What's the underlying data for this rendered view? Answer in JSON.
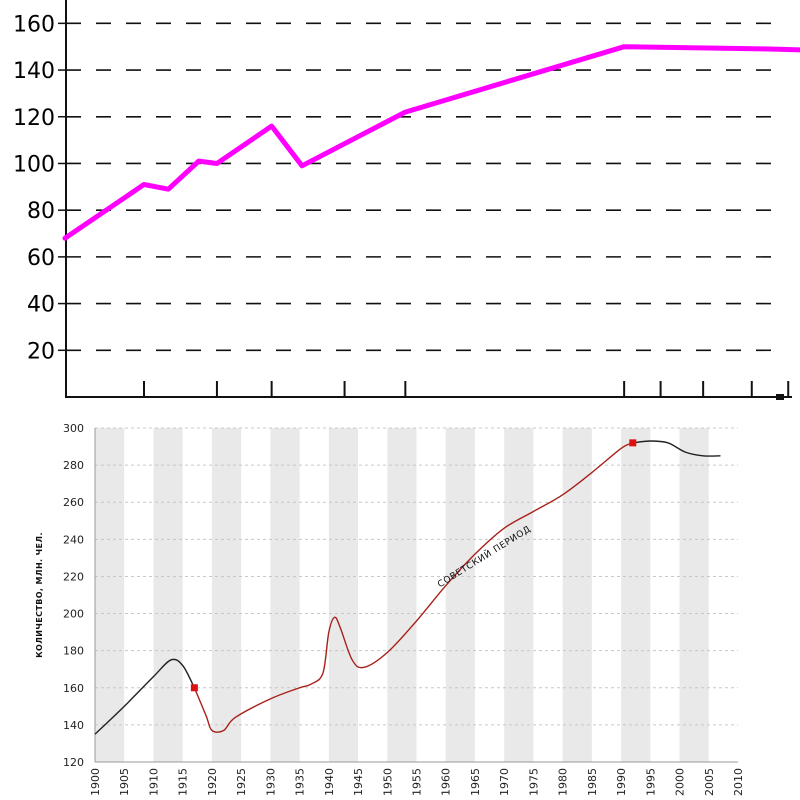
{
  "chart_data": [
    {
      "type": "line",
      "title": "",
      "xlabel": "",
      "ylabel": "",
      "xlim": [
        1895,
        2011
      ],
      "ylim": [
        0,
        170
      ],
      "yticks": [
        20,
        40,
        60,
        80,
        100,
        120,
        140,
        160
      ],
      "x_tick_marks": [
        1908,
        1920,
        1929,
        1941,
        1951,
        1987,
        1993,
        2000,
        2008,
        2014
      ],
      "grid": "horizontal dashed",
      "series": [
        {
          "color": "#ff00ff",
          "points": [
            [
              1895,
              68
            ],
            [
              1908,
              91
            ],
            [
              1912,
              89
            ],
            [
              1917,
              101
            ],
            [
              1920,
              100
            ],
            [
              1929,
              116
            ],
            [
              1934,
              99
            ],
            [
              1951,
              122
            ],
            [
              1987,
              150
            ],
            [
              2011,
              149
            ],
            [
              2024,
              148
            ]
          ]
        }
      ]
    },
    {
      "type": "line",
      "title": "",
      "xlabel": "",
      "ylabel": "КОЛИЧЕСТВО, МЛН. ЧЕЛ.",
      "xlim": [
        1900,
        2010
      ],
      "ylim": [
        120,
        300
      ],
      "xticks": [
        1900,
        1905,
        1910,
        1915,
        1920,
        1925,
        1930,
        1935,
        1940,
        1945,
        1950,
        1955,
        1960,
        1965,
        1970,
        1975,
        1980,
        1985,
        1990,
        1995,
        2000,
        2005,
        2010
      ],
      "yticks": [
        120,
        140,
        160,
        180,
        200,
        220,
        240,
        260,
        280,
        300
      ],
      "grid": "alternating vertical bands every 5 years, dashed horizontal lines",
      "annotation": "СОВЕТСКИЙ ПЕРИОД",
      "series": [
        {
          "color": "#222222",
          "points": [
            [
              1900,
              135
            ],
            [
              1905,
              150
            ],
            [
              1910,
              166
            ],
            [
              1913,
              175
            ],
            [
              1915,
              172
            ],
            [
              1917,
              160
            ]
          ]
        },
        {
          "color": "#a8201a",
          "points": [
            [
              1917,
              160
            ],
            [
              1919,
              145
            ],
            [
              1920,
              137
            ],
            [
              1922,
              137
            ],
            [
              1924,
              144
            ],
            [
              1930,
              154
            ],
            [
              1935,
              160
            ],
            [
              1937,
              162
            ],
            [
              1939,
              168
            ],
            [
              1940,
              190
            ],
            [
              1941,
              198
            ],
            [
              1942,
              192
            ],
            [
              1944,
              175
            ],
            [
              1946,
              171
            ],
            [
              1950,
              179
            ],
            [
              1955,
              196
            ],
            [
              1960,
              215
            ],
            [
              1965,
              232
            ],
            [
              1970,
              246
            ],
            [
              1975,
              255
            ],
            [
              1980,
              264
            ],
            [
              1985,
              276
            ],
            [
              1990,
              289
            ],
            [
              1992,
              292
            ]
          ]
        },
        {
          "color": "#222222",
          "points": [
            [
              1992,
              292
            ],
            [
              1995,
              293
            ],
            [
              1998,
              292
            ],
            [
              2001,
              287
            ],
            [
              2004,
              285
            ],
            [
              2007,
              285
            ]
          ]
        }
      ],
      "markers": [
        {
          "x": 1917,
          "y": 160,
          "color": "#dd1111"
        },
        {
          "x": 1992,
          "y": 292,
          "color": "#dd1111"
        }
      ]
    }
  ]
}
